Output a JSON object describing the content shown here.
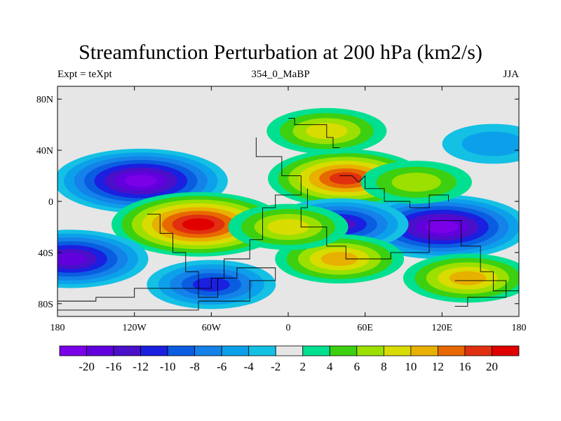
{
  "chart_data": {
    "type": "heatmap",
    "title": "Streamfunction Perturbation at 200 hPa (km2/s)",
    "subtitle_left": "Expt = teXpt",
    "subtitle_center": "354_0_MaBP",
    "subtitle_right": "JJA",
    "x_ticks": [
      "180",
      "120W",
      "60W",
      "0",
      "60E",
      "120E",
      "180"
    ],
    "x_tick_values": [
      -180,
      -120,
      -60,
      0,
      60,
      120,
      180
    ],
    "y_ticks": [
      "80N",
      "40N",
      "0",
      "40S",
      "80S"
    ],
    "y_tick_values": [
      80,
      40,
      0,
      -40,
      -80
    ],
    "xlim": [
      -180,
      180
    ],
    "ylim": [
      -90,
      90
    ],
    "colorbar": {
      "colors": [
        "#7a00e8",
        "#6100dd",
        "#4a0fc8",
        "#1a1fe0",
        "#0a5de0",
        "#1482e8",
        "#0ca0ea",
        "#14c0e4",
        "#e6e6e6",
        "#00e090",
        "#3cd010",
        "#9be000",
        "#d8dc00",
        "#e8b000",
        "#e86800",
        "#e03010",
        "#e00000"
      ],
      "labels": [
        "-20",
        "-16",
        "-12",
        "-10",
        "-8",
        "-6",
        "-4",
        "-2",
        "2",
        "4",
        "6",
        "8",
        "10",
        "12",
        "16",
        "20"
      ]
    },
    "field_blobs": [
      {
        "lon": -115,
        "lat": 16,
        "value": -20
      },
      {
        "lon": -70,
        "lat": -18,
        "value": 20
      },
      {
        "lon": -170,
        "lat": -45,
        "value": -16
      },
      {
        "lon": 45,
        "lat": 18,
        "value": 16
      },
      {
        "lon": 120,
        "lat": -20,
        "value": -20
      },
      {
        "lon": 40,
        "lat": -18,
        "value": -12
      },
      {
        "lon": -60,
        "lat": -65,
        "value": -10
      },
      {
        "lon": 140,
        "lat": -60,
        "value": 10
      },
      {
        "lon": 40,
        "lat": -45,
        "value": 10
      },
      {
        "lon": 30,
        "lat": 55,
        "value": 8
      },
      {
        "lon": 100,
        "lat": 15,
        "value": 6
      },
      {
        "lon": 0,
        "lat": -20,
        "value": 8
      },
      {
        "lon": 160,
        "lat": 45,
        "value": -4
      }
    ]
  }
}
